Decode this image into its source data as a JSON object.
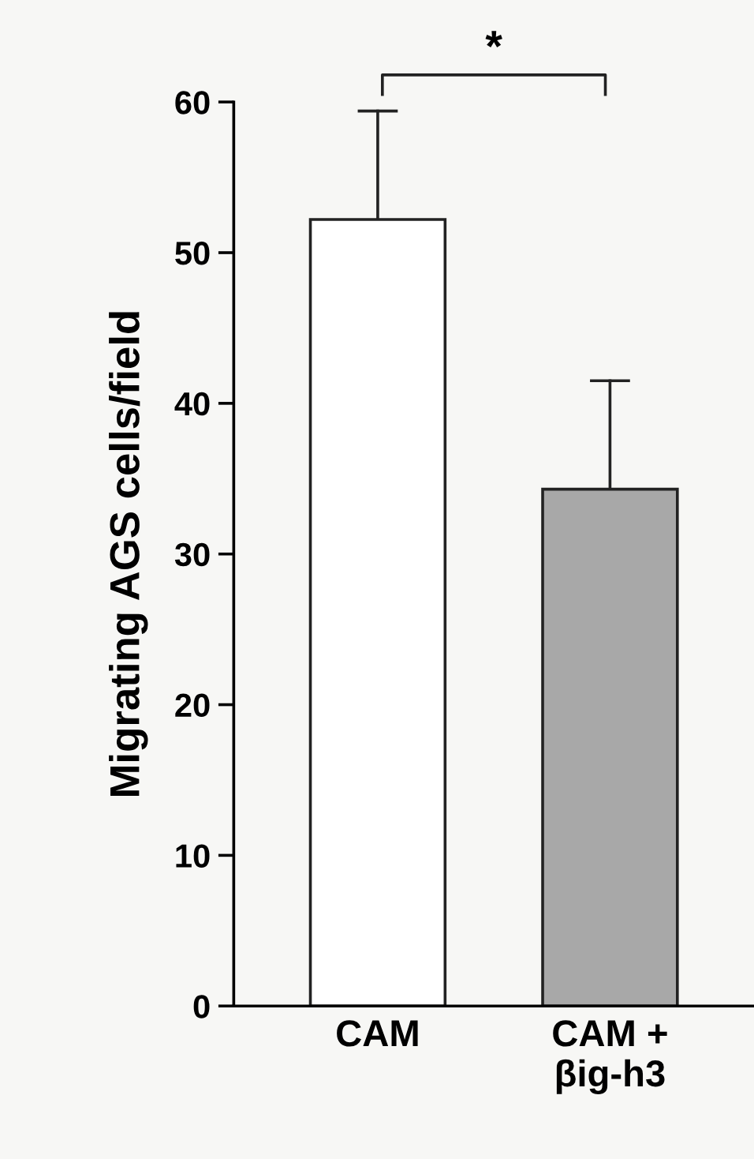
{
  "chart_data": {
    "type": "bar",
    "ylabel": "Migrating AGS cells/field",
    "categories": [
      "CAM",
      "CAM +\nβig-h3"
    ],
    "values": [
      52.2,
      34.3
    ],
    "colors": [
      "#ffffff",
      "#a8a8a8"
    ],
    "errors": [
      [
        52.2,
        59.4
      ],
      [
        34.3,
        41.5
      ]
    ],
    "ylim": [
      0,
      60
    ],
    "yticks": [
      0,
      10,
      20,
      30,
      40,
      50,
      60
    ],
    "annotations": [
      "*"
    ],
    "grid": false,
    "legend": false
  }
}
